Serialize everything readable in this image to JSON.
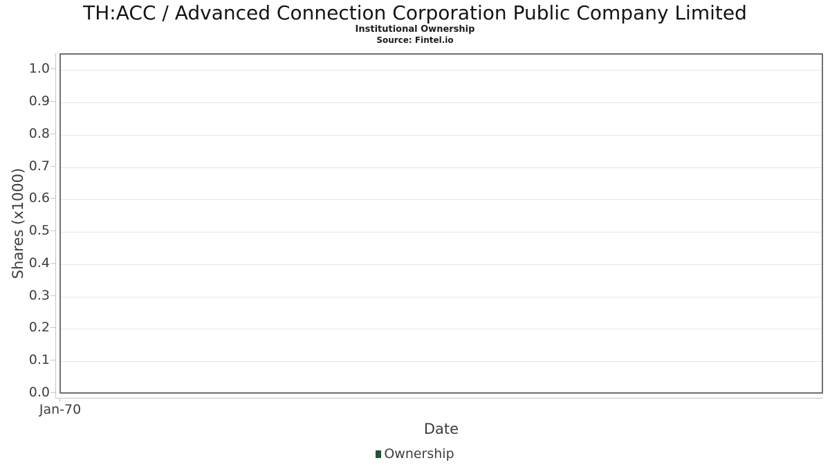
{
  "header": {
    "title": "TH:ACC / Advanced Connection Corporation Public Company Limited",
    "subtitle": "Institutional Ownership",
    "source": "Source: Fintel.io"
  },
  "legend": {
    "items": [
      {
        "label": "Ownership",
        "color": "#1e5631"
      }
    ]
  },
  "chart_data": {
    "type": "line",
    "title": "TH:ACC / Advanced Connection Corporation Public Company Limited",
    "subtitle": "Institutional Ownership",
    "source": "Source: Fintel.io",
    "xlabel": "Date",
    "ylabel": "Shares (x1000)",
    "xticks": [
      "Jan-70"
    ],
    "yticks": [
      {
        "label": "0.0",
        "value": 0.0
      },
      {
        "label": "0.1",
        "value": 0.1
      },
      {
        "label": "0.2",
        "value": 0.2
      },
      {
        "label": "0.3",
        "value": 0.3
      },
      {
        "label": "0.4",
        "value": 0.4
      },
      {
        "label": "0.5",
        "value": 0.5
      },
      {
        "label": "0.6",
        "value": 0.6
      },
      {
        "label": "0.7",
        "value": 0.7
      },
      {
        "label": "0.8",
        "value": 0.8
      },
      {
        "label": "0.9",
        "value": 0.9
      },
      {
        "label": "1.0",
        "value": 1.0
      }
    ],
    "ylim": [
      0.0,
      1.045
    ],
    "grid": "horizontal",
    "legend_position": "bottom-center",
    "series": [
      {
        "name": "Ownership",
        "color": "#1e5631",
        "x": [],
        "values": []
      }
    ]
  },
  "style": {
    "background": "#ffffff",
    "plot_border_color": "#6f6f6f",
    "gridline_color": "#e4e4e4",
    "axis_line_color": "#c6c6c6",
    "tick_text_color": "#3d3d3d",
    "title_color": "#141414"
  }
}
